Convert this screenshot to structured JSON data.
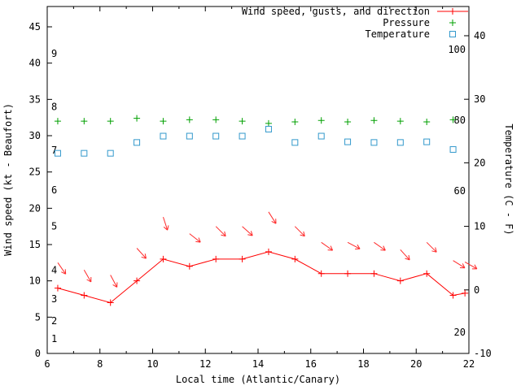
{
  "legend": {
    "items": [
      {
        "label": "Wind speed, gusts, and direction",
        "text_color": "#8b0000",
        "marker": "line-plus",
        "marker_color": "#ff0000"
      },
      {
        "label": "Pressure",
        "text_color": "#8b0000",
        "marker": "plus",
        "marker_color": "#00a000"
      },
      {
        "label": "Temperature",
        "text_color": "#3377aa",
        "marker": "square",
        "marker_color": "#3399cc"
      }
    ]
  },
  "chart_data": {
    "type": "line",
    "title": "",
    "xlabel": "Local time (Atlantic/Canary)",
    "ylabel_left": "Wind speed (kt - Beaufort)",
    "ylabel_right": "Temperature (C - F)",
    "x_range": [
      6,
      22
    ],
    "y_left_range": [
      0,
      47.8
    ],
    "y_right_range": [
      -10,
      44.6
    ],
    "x_major_ticks": [
      6,
      8,
      10,
      12,
      14,
      16,
      18,
      20,
      22
    ],
    "x_minor_step": 1,
    "y_left_ticks": [
      0,
      5,
      10,
      15,
      20,
      25,
      30,
      35,
      40,
      45
    ],
    "y_right_ticks": [
      -10,
      0,
      10,
      20,
      30,
      40
    ],
    "legend_position": "top-right-inside",
    "grid": false,
    "beaufort_scale_labels": [
      {
        "b": "1",
        "kt": 2.0
      },
      {
        "b": "2",
        "kt": 4.5
      },
      {
        "b": "3",
        "kt": 7.5
      },
      {
        "b": "4",
        "kt": 11.5
      },
      {
        "b": "5",
        "kt": 17.5
      },
      {
        "b": "6",
        "kt": 22.5
      },
      {
        "b": "7",
        "kt": 28.0
      },
      {
        "b": "8",
        "kt": 34.0
      },
      {
        "b": "9",
        "kt": 41.3
      }
    ],
    "fahrenheit_scale_labels": [
      {
        "f": "100",
        "c": 37.8
      },
      {
        "f": "80",
        "c": 26.7
      },
      {
        "f": "60",
        "c": 15.6
      },
      {
        "f": "20",
        "c": -6.7
      }
    ],
    "series": [
      {
        "id": "wind_speed",
        "name": "Wind speed, gusts, and direction",
        "style": "line-plus",
        "color": "#ff0000",
        "axis": "left",
        "unit": "kt",
        "x": [
          6.4,
          7.4,
          8.4,
          9.4,
          10.4,
          11.4,
          12.4,
          13.4,
          14.4,
          15.4,
          16.4,
          17.4,
          18.4,
          19.4,
          20.4,
          21.4,
          21.85
        ],
        "y": [
          9,
          8,
          7,
          10,
          13,
          12,
          13,
          13,
          14,
          13,
          11,
          11,
          11,
          10,
          11,
          8,
          8.3
        ]
      },
      {
        "id": "wind_gust_arrows",
        "name": "Wind gusts and direction arrows",
        "style": "arrows",
        "color": "#ff2a2a",
        "axis": "left",
        "unit": "kt",
        "x": [
          6.4,
          7.4,
          8.4,
          9.4,
          10.4,
          11.4,
          12.4,
          13.4,
          14.4,
          15.4,
          16.4,
          17.4,
          18.4,
          19.4,
          20.4,
          21.4,
          21.85
        ],
        "y": [
          12.5,
          11.5,
          10.8,
          14.5,
          18.8,
          16.5,
          17.5,
          17.5,
          19.5,
          17.5,
          15.3,
          15.3,
          15.3,
          14.3,
          15.3,
          12.8,
          12.6
        ],
        "angles_deg": [
          55,
          60,
          62,
          48,
          72,
          38,
          45,
          42,
          58,
          45,
          35,
          28,
          35,
          48,
          45,
          32,
          30
        ]
      },
      {
        "id": "pressure",
        "name": "Pressure",
        "style": "plus",
        "color": "#00a000",
        "axis": "left",
        "x": [
          6.4,
          7.4,
          8.4,
          9.4,
          10.4,
          11.4,
          12.4,
          13.4,
          14.4,
          15.4,
          16.4,
          17.4,
          18.4,
          19.4,
          20.4,
          21.4
        ],
        "y": [
          32,
          32,
          32,
          32.4,
          32,
          32.2,
          32.2,
          32,
          31.7,
          31.9,
          32.1,
          31.9,
          32.1,
          32,
          31.9,
          32.2
        ]
      },
      {
        "id": "temperature",
        "name": "Temperature",
        "style": "open-square",
        "color": "#3399cc",
        "axis": "right",
        "unit": "C",
        "x": [
          6.4,
          7.4,
          8.4,
          9.4,
          10.4,
          11.4,
          12.4,
          13.4,
          14.4,
          15.4,
          16.4,
          17.4,
          18.4,
          19.4,
          20.4,
          21.4
        ],
        "y": [
          21.5,
          21.5,
          21.5,
          23.2,
          24.2,
          24.2,
          24.2,
          24.2,
          25.3,
          23.2,
          24.2,
          23.3,
          23.2,
          23.2,
          23.3,
          22.1
        ]
      }
    ]
  }
}
